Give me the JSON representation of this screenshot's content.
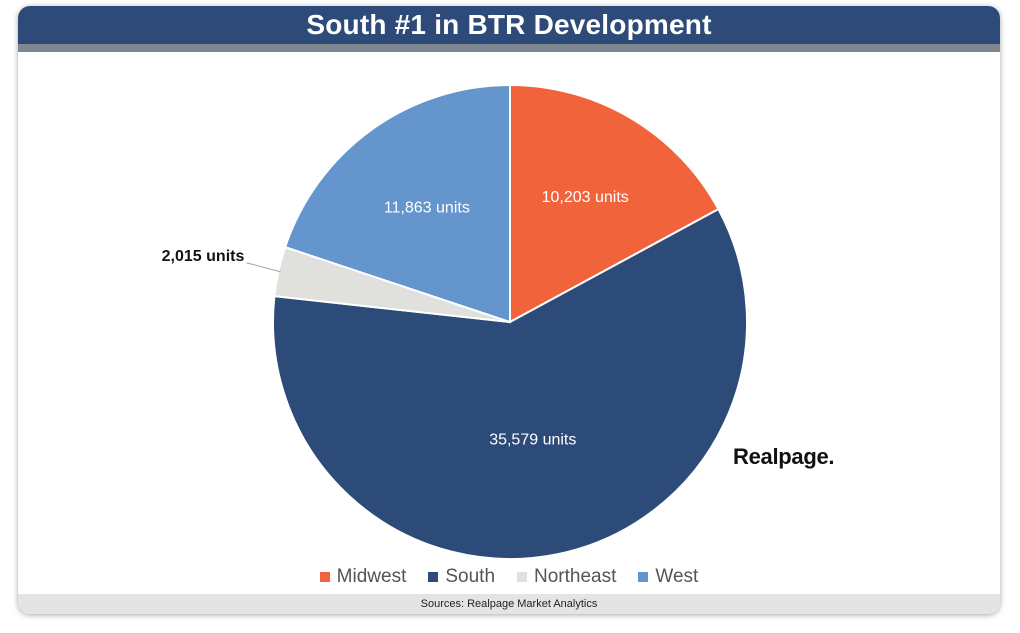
{
  "header": {
    "title": "South #1 in BTR Development",
    "bg_color": "#2E4A78",
    "stripe_color": "#7F8790"
  },
  "logo": {
    "text": "Realpage."
  },
  "footer": {
    "source": "Sources: Realpage Market Analytics",
    "bg_color": "#E4E4E2"
  },
  "chart_data": {
    "type": "pie",
    "title": "South #1 in BTR Development",
    "categories": [
      "Midwest",
      "South",
      "Northeast",
      "West"
    ],
    "values": [
      10203,
      35579,
      2015,
      11863
    ],
    "data_labels": [
      "10,203 units",
      "35,579 units",
      "2,015 units",
      "11,863 units"
    ],
    "colors": [
      "#F1643B",
      "#2C4B78",
      "#E0E0DD",
      "#6495CC"
    ],
    "legend_position": "bottom",
    "start_angle": "12 o'clock, clockwise"
  }
}
